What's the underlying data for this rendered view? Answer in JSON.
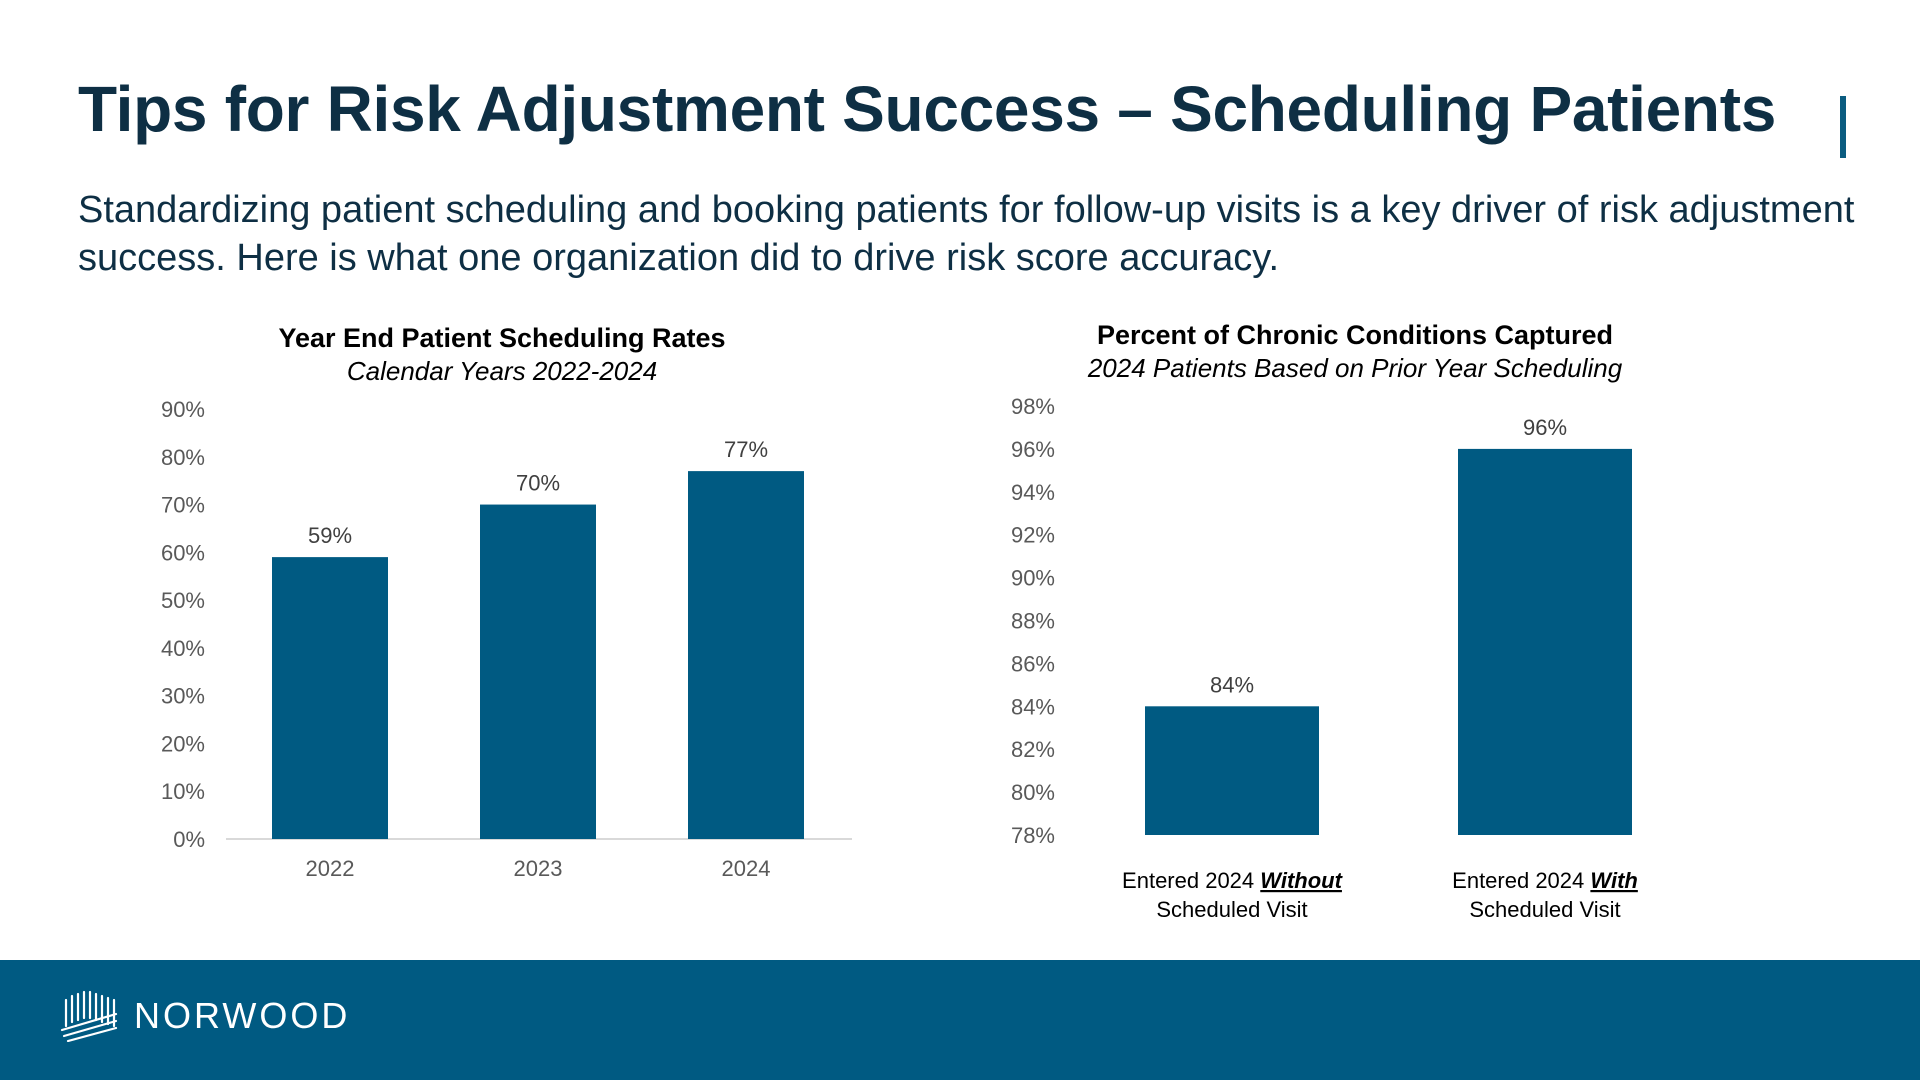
{
  "slide": {
    "title": "Tips for Risk Adjustment Success – Scheduling Patients",
    "subtitle": "Standardizing patient scheduling and booking patients for follow-up visits is a key driver of risk adjustment success. Here is what one organization did to drive risk score accuracy.",
    "logo_text": "NORWOOD",
    "logo_icon": "norwood-mark-icon"
  },
  "colors": {
    "title": "#0e2f44",
    "bar": "#005a82",
    "footer": "#005a82",
    "axis_text": "#595959",
    "axis_line": "#d9d9d9"
  },
  "chart_data": [
    {
      "type": "bar",
      "title": "Year End Patient Scheduling Rates",
      "subtitle": "Calendar Years 2022-2024",
      "categories": [
        "2022",
        "2023",
        "2024"
      ],
      "values": [
        59,
        70,
        77
      ],
      "data_labels": [
        "59%",
        "70%",
        "77%"
      ],
      "y_ticks": [
        "0%",
        "10%",
        "20%",
        "30%",
        "40%",
        "50%",
        "60%",
        "70%",
        "80%",
        "90%"
      ],
      "ylim": [
        0,
        90
      ],
      "grid": false,
      "legend": "none"
    },
    {
      "type": "bar",
      "title": "Percent of Chronic Conditions Captured",
      "subtitle": "2024 Patients Based on Prior Year Scheduling",
      "categories": [
        {
          "prefix": "Entered 2024 ",
          "emphasis": "Without",
          "line2": "Scheduled Visit"
        },
        {
          "prefix": "Entered 2024 ",
          "emphasis": "With",
          "line2": "Scheduled Visit"
        }
      ],
      "values": [
        84,
        96
      ],
      "data_labels": [
        "84%",
        "96%"
      ],
      "y_ticks": [
        "78%",
        "80%",
        "82%",
        "84%",
        "86%",
        "88%",
        "90%",
        "92%",
        "94%",
        "96%",
        "98%"
      ],
      "ylim": [
        78,
        98
      ],
      "grid": false,
      "legend": "none"
    }
  ]
}
